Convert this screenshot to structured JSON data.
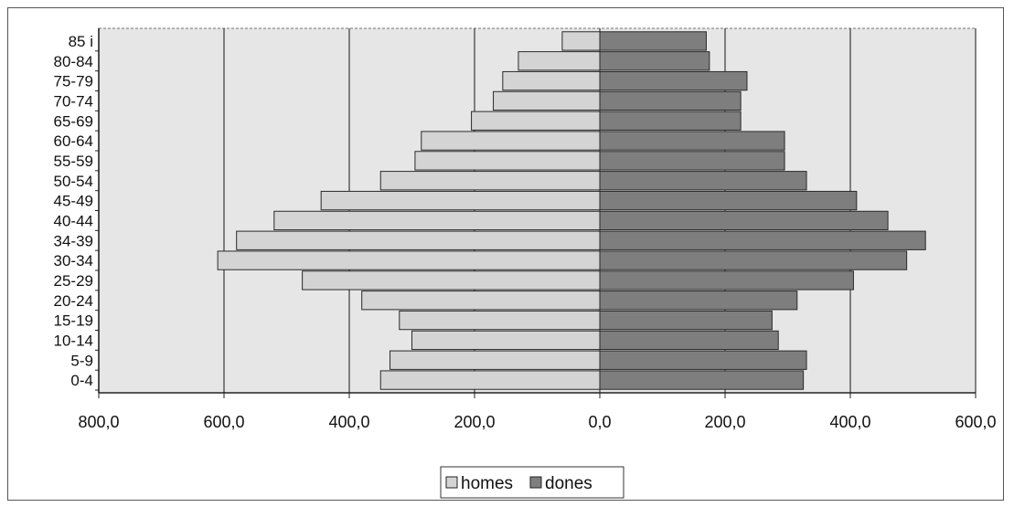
{
  "chart_data": {
    "type": "bar",
    "orientation": "horizontal",
    "title": "",
    "xlabel": "",
    "ylabel": "",
    "categories": [
      "0-4",
      "5-9",
      "10-14",
      "15-19",
      "20-24",
      "25-29",
      "30-34",
      "34-39",
      "40-44",
      "45-49",
      "50-54",
      "55-59",
      "60-64",
      "65-69",
      "70-74",
      "75-79",
      "80-84",
      "85 i"
    ],
    "series": [
      {
        "name": "homes",
        "color": "#d4d4d4",
        "values": [
          350,
          335,
          300,
          320,
          380,
          475,
          610,
          580,
          520,
          445,
          350,
          295,
          285,
          205,
          170,
          155,
          130,
          60
        ]
      },
      {
        "name": "dones",
        "color": "#7e7e7e",
        "values": [
          325,
          330,
          285,
          275,
          315,
          405,
          490,
          520,
          460,
          410,
          330,
          295,
          295,
          225,
          225,
          235,
          175,
          170
        ]
      }
    ],
    "x_tick_labels": [
      "800,0",
      "600,0",
      "400,0",
      "200,0",
      "0,0",
      "200,0",
      "400,0",
      "600,0"
    ],
    "xlim": [
      -800,
      600
    ],
    "grid": "vertical gridlines at every 200",
    "legend_position": "bottom"
  }
}
